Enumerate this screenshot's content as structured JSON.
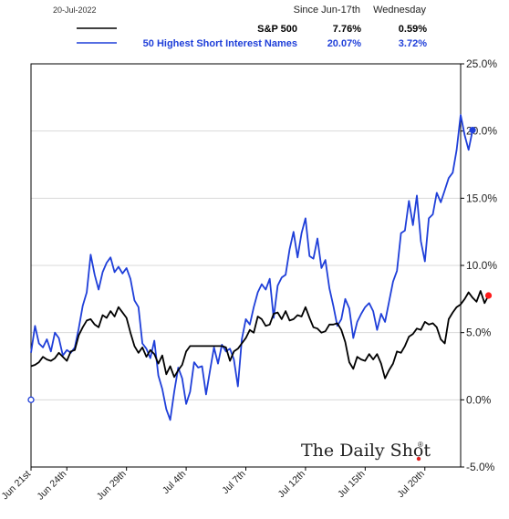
{
  "header": {
    "date": "20-Jul-2022",
    "col1": "Since Jun-17th",
    "col2": "Wednesday"
  },
  "legend": [
    {
      "name": "S&P 500",
      "since": "7.76%",
      "day": "0.59%",
      "color": "#000000",
      "text_color": "#000000"
    },
    {
      "name": "50 Highest Short Interest Names",
      "since": "20.07%",
      "day": "3.72%",
      "color": "#1f3fd9",
      "text_color": "#1f3fd9"
    }
  ],
  "watermark": "The Daily Shot",
  "watermark_mark": "®",
  "chart_data": {
    "type": "line",
    "title": "",
    "xlabel": "",
    "ylabel": "",
    "ylim": [
      -5,
      25
    ],
    "y_ticks": [
      -5,
      0,
      5,
      10,
      15,
      20,
      25
    ],
    "y_tick_labels": [
      "-5.0%",
      "0.0%",
      "5.0%",
      "10.0%",
      "15.0%",
      "20.0%",
      "25.0%"
    ],
    "x_ticks": [
      "Jun 21st",
      "Jun 24th",
      "Jun 29th",
      "Jul 4th",
      "Jul 7th",
      "Jul 12th",
      "Jul 15th",
      "Jul 20th"
    ],
    "x_tick_index": [
      0,
      9,
      24,
      39,
      54,
      69,
      84,
      99
    ],
    "x_max": 108,
    "grid": "horizontal",
    "start_marker": {
      "x": 0,
      "y": 0
    },
    "series": [
      {
        "name": "S&P 500",
        "color": "#000000",
        "end_marker_color": "#ff1a1a",
        "values": [
          2.5,
          2.6,
          2.8,
          3.2,
          3.0,
          2.9,
          3.1,
          3.5,
          3.2,
          2.9,
          3.6,
          3.7,
          4.8,
          5.4,
          5.9,
          6.0,
          5.6,
          5.4,
          6.3,
          6.1,
          6.6,
          6.2,
          6.9,
          6.5,
          6.1,
          5.0,
          4.0,
          3.5,
          3.9,
          3.2,
          3.7,
          3.4,
          2.7,
          3.3,
          1.9,
          2.5,
          1.7,
          2.2,
          2.6,
          3.6,
          4.0,
          4.0,
          4.0,
          4.0,
          4.0,
          4.0,
          4.0,
          4.0,
          4.0,
          3.9,
          2.9,
          3.6,
          3.8,
          4.2,
          4.6,
          5.2,
          5.0,
          6.2,
          6.0,
          5.5,
          5.6,
          6.4,
          6.5,
          6.0,
          6.6,
          5.9,
          6.0,
          6.3,
          6.2,
          6.9,
          6.1,
          5.4,
          5.3,
          5.0,
          5.1,
          5.6,
          5.6,
          5.7,
          5.2,
          4.3,
          2.8,
          2.3,
          3.2,
          3.0,
          2.9,
          3.4,
          3.0,
          3.4,
          2.7,
          1.6,
          2.2,
          2.7,
          3.6,
          3.5,
          4.0,
          4.7,
          4.9,
          5.3,
          5.2,
          5.8,
          5.6,
          5.7,
          5.4,
          4.5,
          4.2,
          6.0,
          6.5,
          6.9,
          7.1,
          7.5,
          8.0,
          7.6,
          7.3,
          8.1,
          7.2,
          7.76
        ]
      },
      {
        "name": "50 Highest Short Interest Names",
        "color": "#1f3fd9",
        "end_marker_color": "#1f3fd9",
        "values": [
          3.5,
          5.5,
          4.2,
          3.9,
          4.5,
          3.6,
          5.0,
          4.6,
          3.3,
          3.7,
          3.5,
          3.9,
          5.3,
          7.0,
          8.0,
          10.8,
          9.3,
          8.2,
          9.5,
          10.2,
          10.6,
          9.5,
          9.9,
          9.4,
          9.8,
          9.0,
          7.4,
          6.9,
          4.2,
          3.8,
          3.1,
          4.4,
          1.8,
          0.8,
          -0.7,
          -1.5,
          0.6,
          2.4,
          1.6,
          -0.3,
          0.6,
          2.8,
          2.4,
          2.5,
          0.4,
          2.2,
          3.9,
          2.7,
          4.1,
          3.6,
          3.8,
          3.0,
          1.0,
          4.5,
          6.0,
          5.6,
          6.9,
          8.0,
          8.6,
          8.2,
          9.0,
          6.1,
          8.5,
          9.1,
          9.3,
          11.2,
          12.5,
          10.6,
          12.4,
          13.5,
          10.7,
          10.5,
          12.0,
          9.8,
          10.4,
          8.3,
          7.0,
          5.5,
          6.0,
          7.5,
          6.8,
          4.6,
          5.8,
          6.4,
          6.9,
          7.2,
          6.6,
          5.2,
          6.4,
          5.8,
          7.3,
          8.8,
          9.6,
          12.4,
          12.6,
          14.8,
          13.0,
          15.2,
          11.8,
          10.3,
          13.5,
          13.8,
          15.4,
          14.7,
          15.6,
          16.5,
          16.9,
          18.6,
          21.2,
          19.7,
          18.6,
          20.07
        ]
      }
    ]
  }
}
